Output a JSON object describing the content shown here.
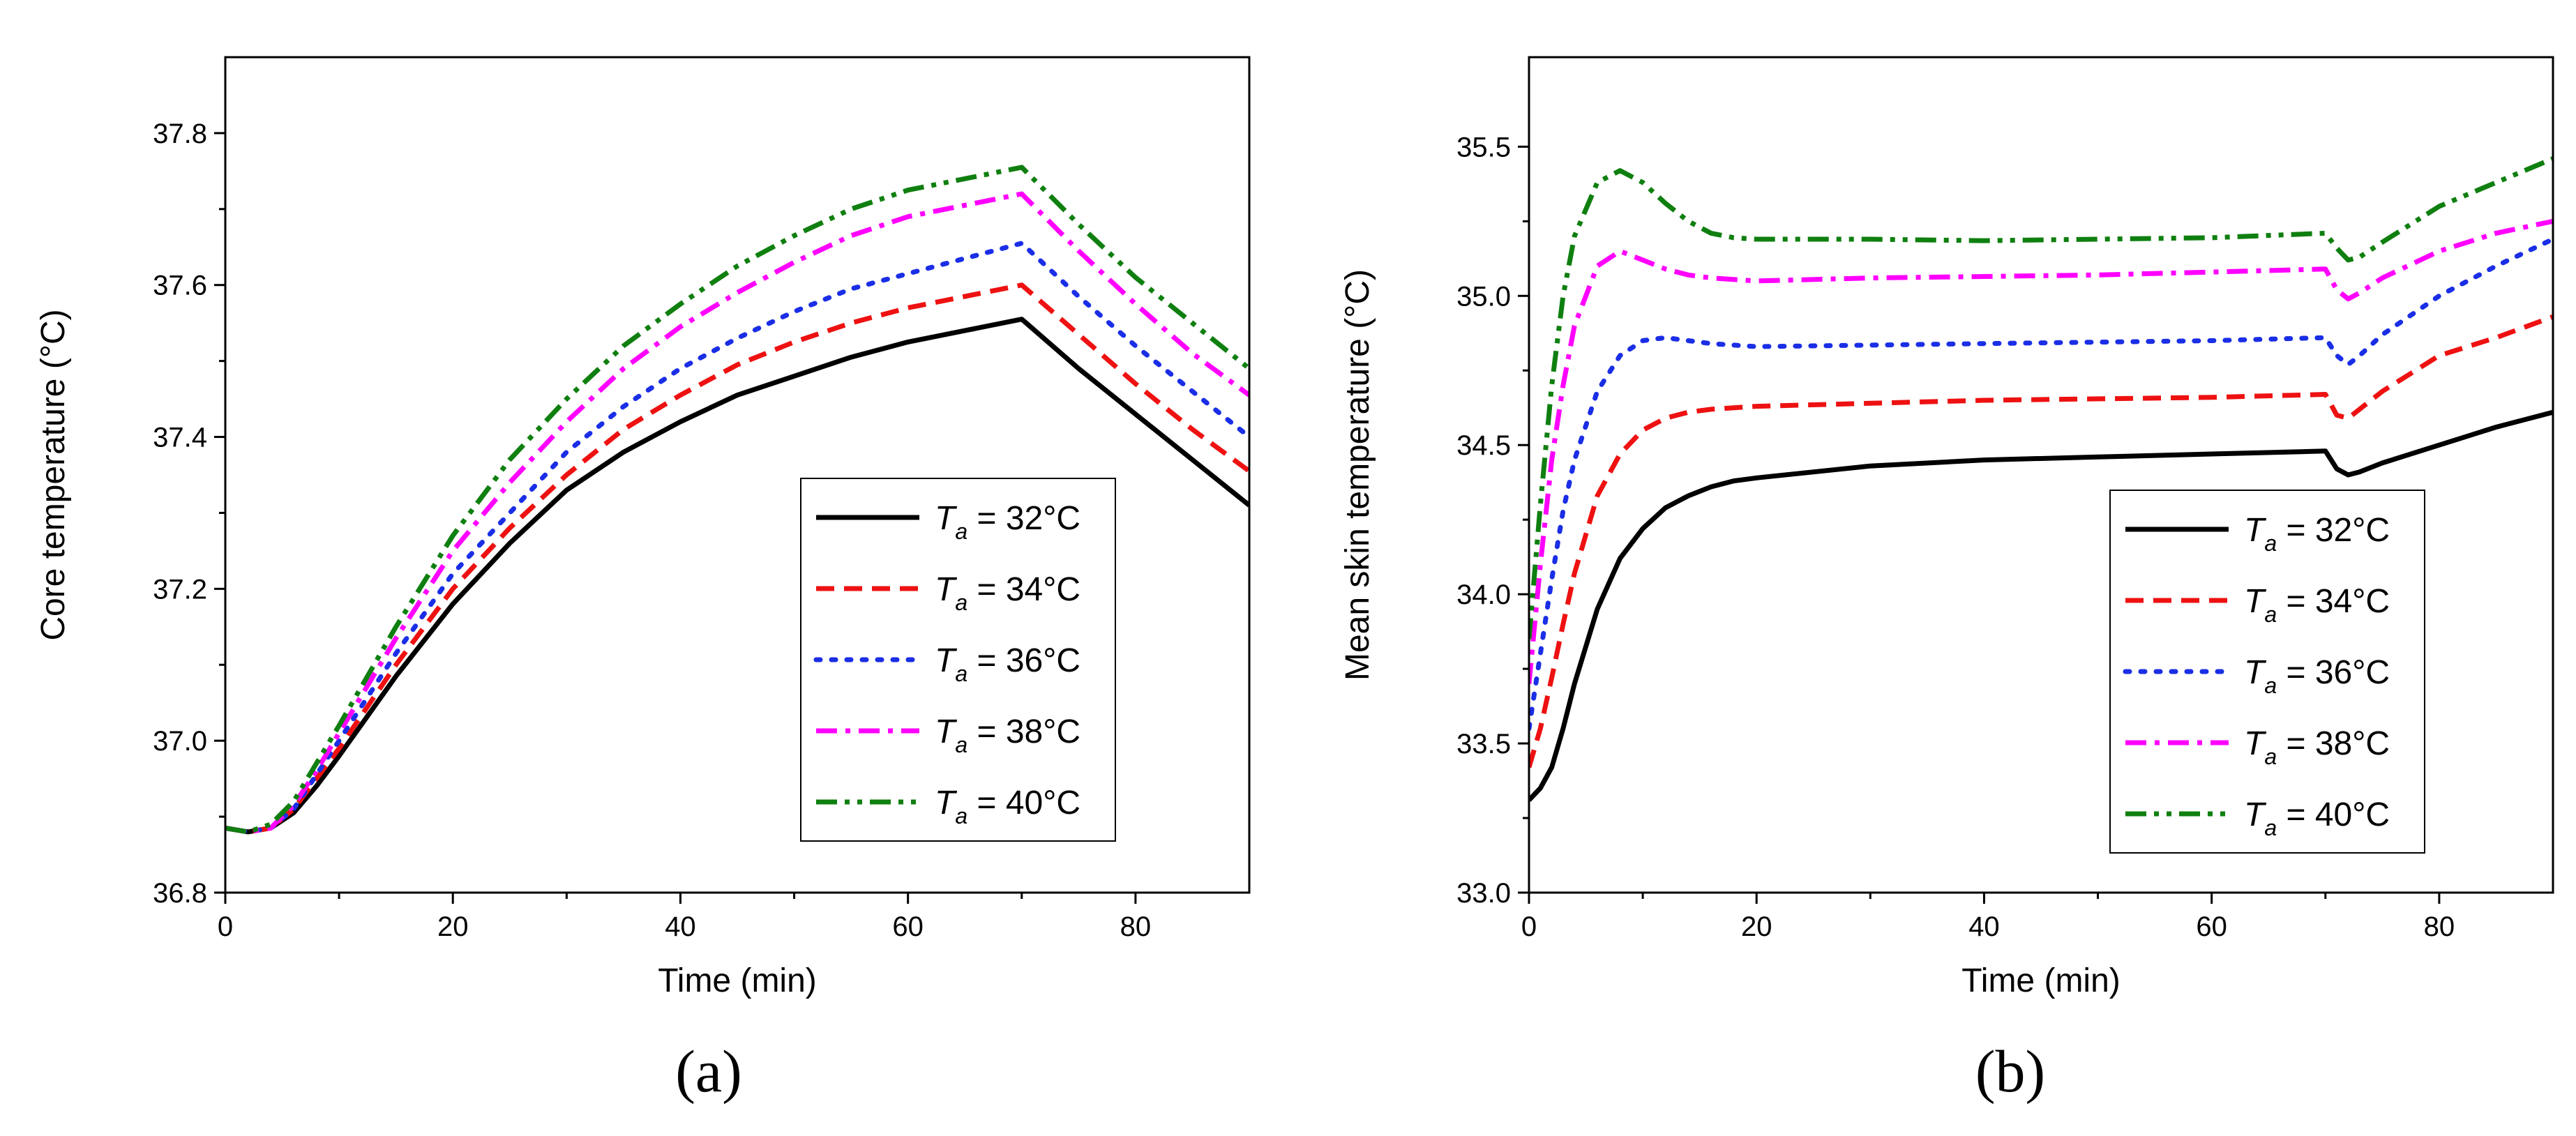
{
  "chart_data": [
    {
      "panel": "a",
      "type": "line",
      "panel_label": "(a)",
      "title": "",
      "xlabel": "Time (min)",
      "ylabel": "Core temperature (°C)",
      "xlim": [
        0,
        90
      ],
      "ylim": [
        36.8,
        37.9
      ],
      "xticks": [
        0,
        20,
        40,
        60,
        80
      ],
      "xtick_labels": [
        "0",
        "20",
        "40",
        "60",
        "80"
      ],
      "yticks": [
        36.8,
        37.0,
        37.2,
        37.4,
        37.6,
        37.8
      ],
      "ytick_labels": [
        "36.8",
        "37.0",
        "37.2",
        "37.4",
        "37.6",
        "37.8"
      ],
      "grid": false,
      "legend_position": "bottom-right",
      "series": [
        {
          "name": "Ta = 32°C",
          "legend_var": "T",
          "legend_sub": "a",
          "legend_value": " = 32°C",
          "color": "#000000",
          "dash": "solid",
          "x": [
            0,
            2,
            4,
            6,
            8,
            10,
            15,
            20,
            25,
            30,
            35,
            40,
            45,
            50,
            55,
            60,
            65,
            70,
            75,
            80,
            85,
            90
          ],
          "y": [
            36.885,
            36.88,
            36.885,
            36.905,
            36.94,
            36.98,
            37.085,
            37.18,
            37.26,
            37.33,
            37.38,
            37.42,
            37.455,
            37.48,
            37.505,
            37.525,
            37.54,
            37.555,
            37.49,
            37.43,
            37.37,
            37.31
          ]
        },
        {
          "name": "Ta = 34°C",
          "legend_var": "T",
          "legend_sub": "a",
          "legend_value": " = 34°C",
          "color": "#ee1111",
          "dash": "dash",
          "x": [
            0,
            2,
            4,
            6,
            8,
            10,
            15,
            20,
            25,
            30,
            35,
            40,
            45,
            50,
            55,
            60,
            65,
            70,
            75,
            80,
            85,
            90
          ],
          "y": [
            36.885,
            36.88,
            36.885,
            36.91,
            36.95,
            36.99,
            37.1,
            37.2,
            37.28,
            37.35,
            37.41,
            37.455,
            37.495,
            37.525,
            37.55,
            37.57,
            37.585,
            37.6,
            37.535,
            37.47,
            37.41,
            37.355
          ]
        },
        {
          "name": "Ta = 36°C",
          "legend_var": "T",
          "legend_sub": "a",
          "legend_value": " = 36°C",
          "color": "#1a2ee6",
          "dash": "dot",
          "x": [
            0,
            2,
            4,
            6,
            8,
            10,
            15,
            20,
            25,
            30,
            35,
            40,
            45,
            50,
            55,
            60,
            65,
            70,
            75,
            80,
            85,
            90
          ],
          "y": [
            36.885,
            36.88,
            36.885,
            36.91,
            36.955,
            37.0,
            37.115,
            37.22,
            37.3,
            37.38,
            37.44,
            37.49,
            37.53,
            37.565,
            37.595,
            37.615,
            37.635,
            37.655,
            37.585,
            37.52,
            37.46,
            37.4
          ]
        },
        {
          "name": "Ta = 38°C",
          "legend_var": "T",
          "legend_sub": "a",
          "legend_value": " = 38°C",
          "color": "#ff00ff",
          "dash": "dashdot",
          "x": [
            0,
            2,
            4,
            6,
            8,
            10,
            15,
            20,
            25,
            30,
            35,
            40,
            45,
            50,
            55,
            60,
            65,
            70,
            75,
            80,
            85,
            90
          ],
          "y": [
            36.885,
            36.88,
            36.885,
            36.915,
            36.96,
            37.01,
            37.135,
            37.25,
            37.34,
            37.42,
            37.49,
            37.545,
            37.59,
            37.63,
            37.665,
            37.69,
            37.705,
            37.72,
            37.645,
            37.575,
            37.51,
            37.455
          ]
        },
        {
          "name": "Ta = 40°C",
          "legend_var": "T",
          "legend_sub": "a",
          "legend_value": " = 40°C",
          "color": "#0f7f0f",
          "dash": "dashdotdot",
          "x": [
            0,
            2,
            4,
            6,
            8,
            10,
            15,
            20,
            25,
            30,
            35,
            40,
            45,
            50,
            55,
            60,
            65,
            70,
            75,
            80,
            85,
            90
          ],
          "y": [
            36.885,
            36.88,
            36.89,
            36.92,
            36.97,
            37.02,
            37.15,
            37.27,
            37.37,
            37.45,
            37.52,
            37.575,
            37.625,
            37.665,
            37.7,
            37.725,
            37.74,
            37.755,
            37.68,
            37.61,
            37.55,
            37.49
          ]
        }
      ]
    },
    {
      "panel": "b",
      "type": "line",
      "panel_label": "(b)",
      "title": "",
      "xlabel": "Time (min)",
      "ylabel": "Mean skin temperature (°C)",
      "xlim": [
        0,
        90
      ],
      "ylim": [
        33.0,
        35.8
      ],
      "xticks": [
        0,
        20,
        40,
        60,
        80
      ],
      "xtick_labels": [
        "0",
        "20",
        "40",
        "60",
        "80"
      ],
      "yticks": [
        33.0,
        33.5,
        34.0,
        34.5,
        35.0,
        35.5
      ],
      "ytick_labels": [
        "33.0",
        "33.5",
        "34.0",
        "34.5",
        "35.0",
        "35.5"
      ],
      "grid": false,
      "legend_position": "bottom-left",
      "series": [
        {
          "name": "Ta = 32°C",
          "legend_var": "T",
          "legend_sub": "a",
          "legend_value": " = 32°C",
          "color": "#000000",
          "dash": "solid",
          "x": [
            0,
            1,
            2,
            3,
            4,
            6,
            8,
            10,
            12,
            14,
            16,
            18,
            20,
            30,
            40,
            50,
            60,
            70,
            71,
            72,
            73,
            75,
            80,
            85,
            90
          ],
          "y": [
            33.31,
            33.35,
            33.42,
            33.55,
            33.7,
            33.95,
            34.12,
            34.22,
            34.29,
            34.33,
            34.36,
            34.38,
            34.39,
            34.43,
            34.45,
            34.46,
            34.47,
            34.48,
            34.42,
            34.4,
            34.41,
            34.44,
            34.5,
            34.56,
            34.61
          ]
        },
        {
          "name": "Ta = 34°C",
          "legend_var": "T",
          "legend_sub": "a",
          "legend_value": " = 34°C",
          "color": "#ee1111",
          "dash": "dash",
          "x": [
            0,
            1,
            2,
            3,
            4,
            6,
            8,
            10,
            12,
            14,
            16,
            18,
            20,
            30,
            40,
            50,
            60,
            70,
            71,
            72,
            73,
            75,
            80,
            85,
            90
          ],
          "y": [
            33.42,
            33.55,
            33.72,
            33.9,
            34.07,
            34.33,
            34.47,
            34.55,
            34.59,
            34.61,
            34.62,
            34.625,
            34.63,
            34.64,
            34.65,
            34.655,
            34.66,
            34.67,
            34.6,
            34.59,
            34.62,
            34.68,
            34.8,
            34.86,
            34.93
          ]
        },
        {
          "name": "Ta = 36°C",
          "legend_var": "T",
          "legend_sub": "a",
          "legend_value": " = 36°C",
          "color": "#1a2ee6",
          "dash": "dot",
          "x": [
            0,
            1,
            2,
            3,
            4,
            6,
            8,
            10,
            12,
            14,
            16,
            18,
            20,
            30,
            40,
            50,
            60,
            70,
            71,
            72,
            73,
            75,
            80,
            85,
            90
          ],
          "y": [
            33.55,
            33.8,
            34.05,
            34.28,
            34.45,
            34.68,
            34.8,
            34.85,
            34.86,
            34.85,
            34.84,
            34.835,
            34.83,
            34.835,
            34.84,
            34.845,
            34.85,
            34.86,
            34.8,
            34.77,
            34.8,
            34.87,
            35.0,
            35.1,
            35.19
          ]
        },
        {
          "name": "Ta = 38°C",
          "legend_var": "T",
          "legend_sub": "a",
          "legend_value": " = 38°C",
          "color": "#ff00ff",
          "dash": "dashdot",
          "x": [
            0,
            1,
            2,
            3,
            4,
            6,
            8,
            10,
            12,
            14,
            16,
            18,
            20,
            30,
            40,
            50,
            60,
            70,
            71,
            72,
            73,
            75,
            80,
            85,
            90
          ],
          "y": [
            33.7,
            34.1,
            34.45,
            34.7,
            34.9,
            35.1,
            35.15,
            35.12,
            35.09,
            35.07,
            35.06,
            35.055,
            35.05,
            35.06,
            35.065,
            35.07,
            35.08,
            35.09,
            35.02,
            34.99,
            35.01,
            35.06,
            35.15,
            35.21,
            35.25
          ]
        },
        {
          "name": "Ta = 40°C",
          "legend_var": "T",
          "legend_sub": "a",
          "legend_value": " = 40°C",
          "color": "#0f7f0f",
          "dash": "dashdotdot",
          "x": [
            0,
            1,
            2,
            3,
            4,
            6,
            8,
            10,
            12,
            14,
            16,
            18,
            20,
            30,
            40,
            50,
            60,
            70,
            71,
            72,
            73,
            75,
            80,
            85,
            90
          ],
          "y": [
            33.85,
            34.3,
            34.7,
            35.0,
            35.2,
            35.38,
            35.42,
            35.38,
            35.31,
            35.25,
            35.21,
            35.195,
            35.19,
            35.19,
            35.185,
            35.19,
            35.195,
            35.21,
            35.16,
            35.12,
            35.13,
            35.18,
            35.3,
            35.38,
            35.46
          ]
        }
      ]
    }
  ]
}
